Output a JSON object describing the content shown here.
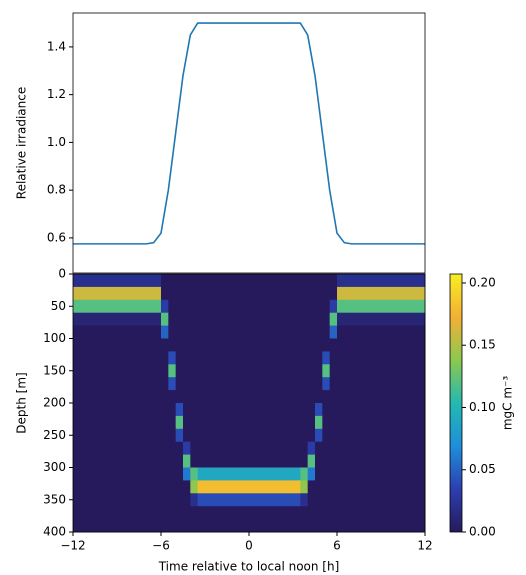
{
  "chart_data": [
    {
      "type": "line",
      "ylabel": "Relative irradiance",
      "x": [
        -12,
        -7,
        -6.5,
        -6,
        -5.5,
        -5,
        -4.5,
        -4,
        -3.5,
        3.5,
        4,
        4.5,
        5,
        5.5,
        6,
        6.5,
        7,
        12
      ],
      "series": [
        {
          "color": "#1f77b4",
          "values": [
            0.575,
            0.575,
            0.58,
            0.62,
            0.8,
            1.04,
            1.28,
            1.45,
            1.5,
            1.5,
            1.45,
            1.28,
            1.04,
            0.8,
            0.62,
            0.58,
            0.575,
            0.575
          ]
        }
      ],
      "xlim": [
        -12,
        12
      ],
      "ylim": [
        0.453,
        1.542
      ],
      "yticks": [
        0.6,
        0.8,
        {
          "value": 1.0,
          "label": "1.0"
        },
        1.2,
        1.4
      ]
    },
    {
      "type": "heatmap",
      "xlabel": "Time relative to local noon [h]",
      "ylabel": "Depth [m]",
      "x_bins": [
        -12,
        -6,
        -5.5,
        -5,
        -4.5,
        -4,
        -3.5,
        3.5,
        4,
        4.5,
        5,
        5.5,
        6,
        12
      ],
      "y_bins": [
        0,
        20,
        40,
        60,
        80,
        100,
        120,
        140,
        160,
        180,
        200,
        220,
        240,
        260,
        280,
        300,
        320,
        340,
        360,
        380,
        400
      ],
      "values": [
        [
          0.02,
          0,
          0,
          0,
          0,
          0,
          0,
          0,
          0,
          0,
          0,
          0,
          0.02
        ],
        [
          0.16,
          0,
          0,
          0,
          0,
          0,
          0,
          0,
          0,
          0,
          0,
          0,
          0.16
        ],
        [
          0.12,
          0.03,
          0,
          0,
          0,
          0,
          0,
          0,
          0,
          0,
          0,
          0.03,
          0.12
        ],
        [
          0.01,
          0.12,
          0,
          0,
          0,
          0,
          0,
          0,
          0,
          0,
          0,
          0.12,
          0.01
        ],
        [
          0,
          0.05,
          0,
          0,
          0,
          0,
          0,
          0,
          0,
          0,
          0,
          0.05,
          0
        ],
        [
          0,
          0,
          0,
          0,
          0,
          0,
          0,
          0,
          0,
          0,
          0,
          0,
          0
        ],
        [
          0,
          0,
          0.04,
          0,
          0,
          0,
          0,
          0,
          0,
          0,
          0.04,
          0,
          0
        ],
        [
          0,
          0,
          0.12,
          0,
          0,
          0,
          0,
          0,
          0,
          0,
          0.12,
          0,
          0
        ],
        [
          0,
          0,
          0.04,
          0,
          0,
          0,
          0,
          0,
          0,
          0,
          0.04,
          0,
          0
        ],
        [
          0,
          0,
          0,
          0,
          0,
          0,
          0,
          0,
          0,
          0,
          0,
          0,
          0
        ],
        [
          0,
          0,
          0,
          0.04,
          0,
          0,
          0,
          0,
          0,
          0.04,
          0,
          0,
          0
        ],
        [
          0,
          0,
          0,
          0.12,
          0,
          0,
          0,
          0,
          0,
          0.12,
          0,
          0,
          0
        ],
        [
          0,
          0,
          0,
          0.04,
          0,
          0,
          0,
          0,
          0,
          0.04,
          0,
          0,
          0
        ],
        [
          0,
          0,
          0,
          0,
          0.03,
          0,
          0,
          0,
          0.03,
          0,
          0,
          0,
          0
        ],
        [
          0,
          0,
          0,
          0,
          0.12,
          0,
          0,
          0,
          0.12,
          0,
          0,
          0,
          0
        ],
        [
          0,
          0,
          0,
          0,
          0.06,
          0.12,
          0.09,
          0.12,
          0.06,
          0,
          0,
          0,
          0
        ],
        [
          0,
          0,
          0,
          0,
          0,
          0.14,
          0.18,
          0.14,
          0,
          0,
          0,
          0,
          0
        ],
        [
          0,
          0,
          0,
          0,
          0,
          0.02,
          0.04,
          0.02,
          0,
          0,
          0,
          0,
          0
        ],
        [
          0,
          0,
          0,
          0,
          0,
          0,
          0,
          0,
          0,
          0,
          0,
          0,
          0
        ],
        [
          0,
          0,
          0,
          0,
          0,
          0,
          0,
          0,
          0,
          0,
          0,
          0,
          0
        ]
      ],
      "xlim": [
        -12,
        12
      ],
      "ylim": [
        400,
        0
      ],
      "xticks": [
        {
          "value": -12,
          "label": "−12"
        },
        {
          "value": -6,
          "label": "−6"
        },
        0,
        6,
        12
      ],
      "yticks": [
        0,
        50,
        100,
        150,
        200,
        250,
        300,
        350,
        400
      ],
      "colormap": [
        "#261a5c",
        "#2c3fb0",
        "#1e8fd9",
        "#23b9b0",
        "#8cc84f",
        "#f2b035",
        "#f7ef22"
      ],
      "colorbar": {
        "label": "mgC m⁻³",
        "zlim": [
          0,
          0.2072
        ],
        "zticks": [
          {
            "value": 0,
            "label": "0.00"
          },
          {
            "value": 0.05,
            "label": "0.05"
          },
          {
            "value": 0.1,
            "label": "0.10"
          },
          {
            "value": 0.15,
            "label": "0.15"
          },
          {
            "value": 0.2,
            "label": "0.20"
          }
        ]
      }
    }
  ]
}
